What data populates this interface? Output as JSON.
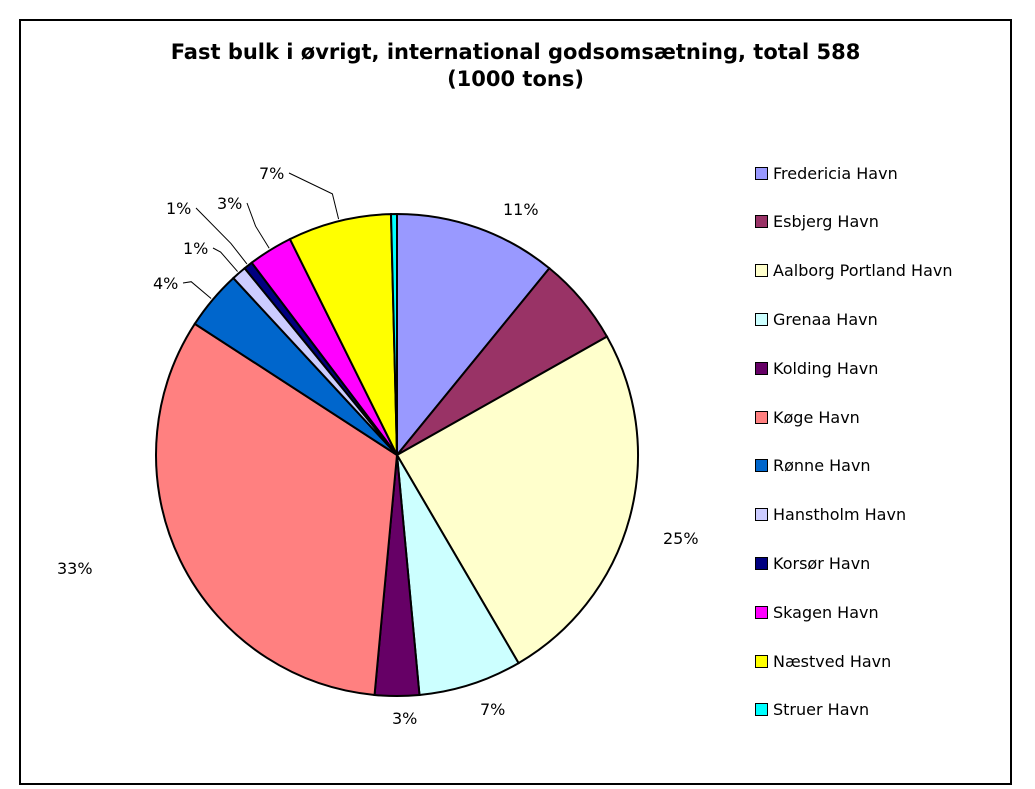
{
  "chart_data": {
    "type": "pie",
    "title_lines": [
      "Fast bulk i øvrigt, international godsomsætning, total 588",
      "(1000 tons)"
    ],
    "slices": [
      {
        "name": "Fredericia Havn",
        "value": 11,
        "label": "11%",
        "color": "#9999FF"
      },
      {
        "name": "Esbjerg Havn",
        "value": 6,
        "label": "",
        "color": "#993366"
      },
      {
        "name": "Aalborg Portland Havn",
        "value": 25,
        "label": "25%",
        "color": "#FFFFCC"
      },
      {
        "name": "Grenaa Havn",
        "value": 7,
        "label": "7%",
        "color": "#CCFFFF"
      },
      {
        "name": "Kolding Havn",
        "value": 3,
        "label": "3%",
        "color": "#660066"
      },
      {
        "name": "Køge Havn",
        "value": 33,
        "label": "33%",
        "color": "#FF8080"
      },
      {
        "name": "Rønne Havn",
        "value": 4,
        "label": "4%",
        "color": "#0066CC"
      },
      {
        "name": "Hanstholm Havn",
        "value": 1,
        "label": "1%",
        "color": "#CCCCFF"
      },
      {
        "name": "Korsør Havn",
        "value": 0.6,
        "label": "1%",
        "color": "#000080"
      },
      {
        "name": "Skagen Havn",
        "value": 3,
        "label": "3%",
        "color": "#FF00FF"
      },
      {
        "name": "Næstved Havn",
        "value": 7,
        "label": "7%",
        "color": "#FFFF00"
      },
      {
        "name": "Struer Havn",
        "value": 0.4,
        "label": "",
        "color": "#00FFFF"
      }
    ],
    "legend_placement": "right"
  }
}
